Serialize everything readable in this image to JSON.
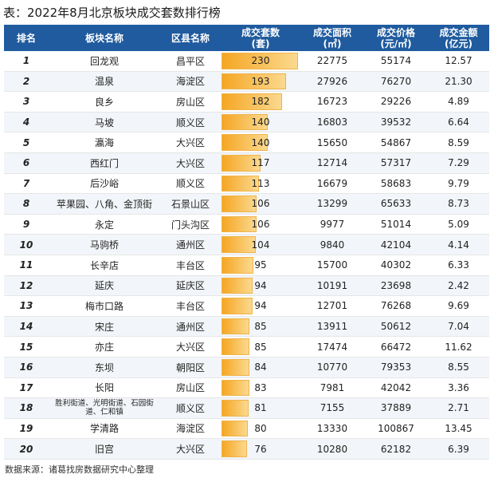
{
  "title": "表：2022年8月北京板块成交套数排行榜",
  "headers": {
    "rank": "排名",
    "block": "板块名称",
    "district": "区县名称",
    "units_l1": "成交套数",
    "units_l2": "(套)",
    "area_l1": "成交面积",
    "area_l2": "(㎡)",
    "price_l1": "成交价格",
    "price_l2": "(元/㎡)",
    "amount_l1": "成交金额",
    "amount_l2": "(亿元)"
  },
  "units_max": 230,
  "rows": [
    {
      "rank": "1",
      "block": "回龙观",
      "district": "昌平区",
      "units": 230,
      "area": "22775",
      "price": "55174",
      "amount": "12.57"
    },
    {
      "rank": "2",
      "block": "温泉",
      "district": "海淀区",
      "units": 193,
      "area": "27926",
      "price": "76270",
      "amount": "21.30"
    },
    {
      "rank": "3",
      "block": "良乡",
      "district": "房山区",
      "units": 182,
      "area": "16723",
      "price": "29226",
      "amount": "4.89"
    },
    {
      "rank": "4",
      "block": "马坡",
      "district": "顺义区",
      "units": 140,
      "area": "16803",
      "price": "39532",
      "amount": "6.64"
    },
    {
      "rank": "5",
      "block": "瀛海",
      "district": "大兴区",
      "units": 140,
      "area": "15650",
      "price": "54867",
      "amount": "8.59"
    },
    {
      "rank": "6",
      "block": "西红门",
      "district": "大兴区",
      "units": 117,
      "area": "12714",
      "price": "57317",
      "amount": "7.29"
    },
    {
      "rank": "7",
      "block": "后沙峪",
      "district": "顺义区",
      "units": 113,
      "area": "16679",
      "price": "58683",
      "amount": "9.79"
    },
    {
      "rank": "8",
      "block": "苹果园、八角、金顶街",
      "district": "石景山区",
      "units": 106,
      "area": "13299",
      "price": "65633",
      "amount": "8.73"
    },
    {
      "rank": "9",
      "block": "永定",
      "district": "门头沟区",
      "units": 106,
      "area": "9977",
      "price": "51014",
      "amount": "5.09"
    },
    {
      "rank": "10",
      "block": "马驹桥",
      "district": "通州区",
      "units": 104,
      "area": "9840",
      "price": "42104",
      "amount": "4.14"
    },
    {
      "rank": "11",
      "block": "长辛店",
      "district": "丰台区",
      "units": 95,
      "area": "15700",
      "price": "40302",
      "amount": "6.33"
    },
    {
      "rank": "12",
      "block": "延庆",
      "district": "延庆区",
      "units": 94,
      "area": "10191",
      "price": "23698",
      "amount": "2.42"
    },
    {
      "rank": "13",
      "block": "梅市口路",
      "district": "丰台区",
      "units": 94,
      "area": "12701",
      "price": "76268",
      "amount": "9.69"
    },
    {
      "rank": "14",
      "block": "宋庄",
      "district": "通州区",
      "units": 85,
      "area": "13911",
      "price": "50612",
      "amount": "7.04"
    },
    {
      "rank": "15",
      "block": "亦庄",
      "district": "大兴区",
      "units": 85,
      "area": "17474",
      "price": "66472",
      "amount": "11.62"
    },
    {
      "rank": "16",
      "block": "东坝",
      "district": "朝阳区",
      "units": 84,
      "area": "10770",
      "price": "79353",
      "amount": "8.55"
    },
    {
      "rank": "17",
      "block": "长阳",
      "district": "房山区",
      "units": 83,
      "area": "7981",
      "price": "42042",
      "amount": "3.36"
    },
    {
      "rank": "18",
      "block": "胜利街道、光明街道、石园街道、仁和镇",
      "district": "顺义区",
      "units": 81,
      "area": "7155",
      "price": "37889",
      "amount": "2.71"
    },
    {
      "rank": "19",
      "block": "学清路",
      "district": "海淀区",
      "units": 80,
      "area": "13330",
      "price": "100867",
      "amount": "13.45"
    },
    {
      "rank": "20",
      "block": "旧宫",
      "district": "大兴区",
      "units": 76,
      "area": "10280",
      "price": "62182",
      "amount": "6.39"
    }
  ],
  "footer": "数据来源：诸葛找房数据研究中心整理"
}
